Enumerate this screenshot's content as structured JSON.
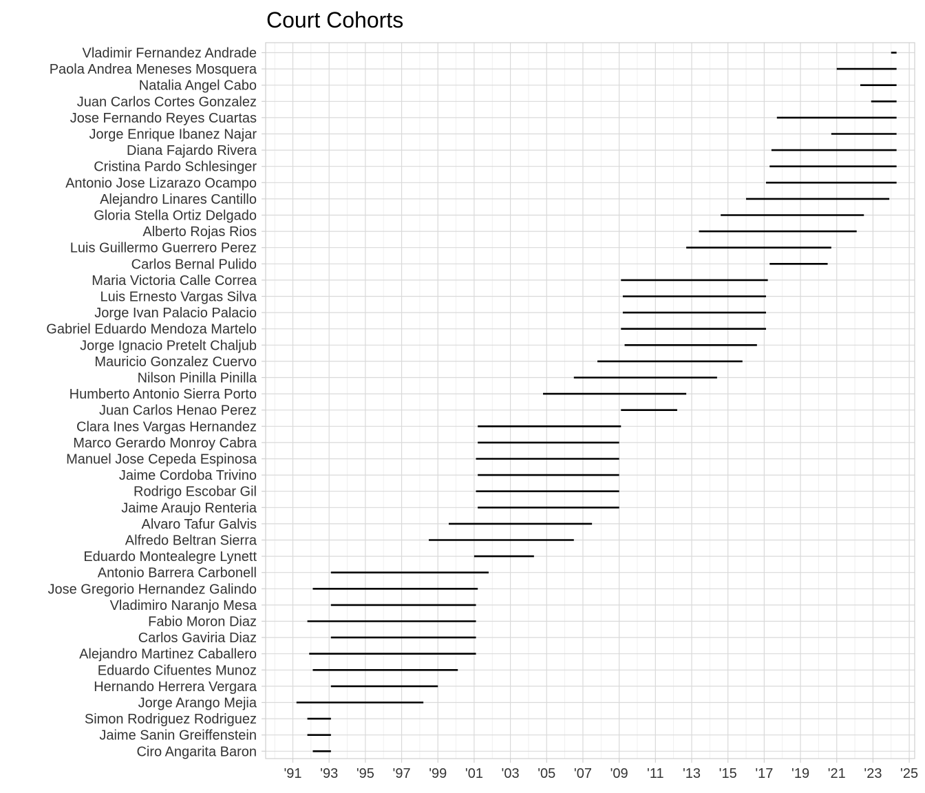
{
  "chart_data": {
    "type": "segment",
    "title": "Court Cohorts",
    "xlabel": "",
    "ylabel": "",
    "xlim": [
      1989.5,
      2025.3
    ],
    "x_ticks": [
      1991,
      1993,
      1995,
      1997,
      1999,
      2001,
      2003,
      2005,
      2007,
      2009,
      2011,
      2013,
      2015,
      2017,
      2019,
      2021,
      2023,
      2025
    ],
    "x_tick_labels": [
      "'91",
      "'93",
      "'95",
      "'97",
      "'99",
      "'01",
      "'03",
      "'05",
      "'07",
      "'09",
      "'11",
      "'13",
      "'15",
      "'17",
      "'19",
      "'21",
      "'23",
      "'25"
    ],
    "grid": true,
    "justices": [
      {
        "name": "Vladimir Fernandez Andrade",
        "start": 2024.0,
        "end": 2024.3
      },
      {
        "name": "Paola Andrea Meneses Mosquera",
        "start": 2021.0,
        "end": 2024.3
      },
      {
        "name": "Natalia Angel Cabo",
        "start": 2022.3,
        "end": 2024.3
      },
      {
        "name": "Juan Carlos Cortes Gonzalez",
        "start": 2022.9,
        "end": 2024.3
      },
      {
        "name": "Jose Fernando Reyes Cuartas",
        "start": 2017.7,
        "end": 2024.3
      },
      {
        "name": "Jorge Enrique Ibanez Najar",
        "start": 2020.7,
        "end": 2024.3
      },
      {
        "name": "Diana Fajardo Rivera",
        "start": 2017.4,
        "end": 2024.3
      },
      {
        "name": "Cristina Pardo Schlesinger",
        "start": 2017.3,
        "end": 2024.3
      },
      {
        "name": "Antonio Jose Lizarazo Ocampo",
        "start": 2017.1,
        "end": 2024.3
      },
      {
        "name": "Alejandro Linares Cantillo",
        "start": 2016.0,
        "end": 2023.9
      },
      {
        "name": "Gloria Stella Ortiz Delgado",
        "start": 2014.6,
        "end": 2022.5
      },
      {
        "name": "Alberto Rojas Rios",
        "start": 2013.4,
        "end": 2022.1
      },
      {
        "name": "Luis Guillermo Guerrero Perez",
        "start": 2012.7,
        "end": 2020.7
      },
      {
        "name": "Carlos Bernal Pulido",
        "start": 2017.3,
        "end": 2020.5
      },
      {
        "name": "Maria Victoria Calle Correa",
        "start": 2009.1,
        "end": 2017.2
      },
      {
        "name": "Luis Ernesto Vargas Silva",
        "start": 2009.2,
        "end": 2017.1
      },
      {
        "name": "Jorge Ivan Palacio Palacio",
        "start": 2009.2,
        "end": 2017.1
      },
      {
        "name": "Gabriel Eduardo Mendoza Martelo",
        "start": 2009.1,
        "end": 2017.1
      },
      {
        "name": "Jorge Ignacio Pretelt Chaljub",
        "start": 2009.3,
        "end": 2016.6
      },
      {
        "name": "Mauricio Gonzalez Cuervo",
        "start": 2007.8,
        "end": 2015.8
      },
      {
        "name": "Nilson Pinilla Pinilla",
        "start": 2006.5,
        "end": 2014.4
      },
      {
        "name": "Humberto Antonio Sierra Porto",
        "start": 2004.8,
        "end": 2012.7
      },
      {
        "name": "Juan Carlos Henao Perez",
        "start": 2009.1,
        "end": 2012.2
      },
      {
        "name": "Clara Ines Vargas Hernandez",
        "start": 2001.2,
        "end": 2009.1
      },
      {
        "name": "Marco Gerardo Monroy Cabra",
        "start": 2001.2,
        "end": 2009.0
      },
      {
        "name": "Manuel Jose Cepeda Espinosa",
        "start": 2001.1,
        "end": 2009.0
      },
      {
        "name": "Jaime Cordoba Trivino",
        "start": 2001.2,
        "end": 2009.0
      },
      {
        "name": "Rodrigo Escobar Gil",
        "start": 2001.1,
        "end": 2009.0
      },
      {
        "name": "Jaime Araujo Renteria",
        "start": 2001.2,
        "end": 2009.0
      },
      {
        "name": "Alvaro Tafur Galvis",
        "start": 1999.6,
        "end": 2007.5
      },
      {
        "name": "Alfredo Beltran Sierra",
        "start": 1998.5,
        "end": 2006.5
      },
      {
        "name": "Eduardo Montealegre Lynett",
        "start": 2001.0,
        "end": 2004.3
      },
      {
        "name": "Antonio Barrera Carbonell",
        "start": 1993.1,
        "end": 2001.8
      },
      {
        "name": "Jose Gregorio Hernandez Galindo",
        "start": 1992.1,
        "end": 2001.2
      },
      {
        "name": "Vladimiro Naranjo Mesa",
        "start": 1993.1,
        "end": 2001.1
      },
      {
        "name": "Fabio Moron Diaz",
        "start": 1991.8,
        "end": 2001.1
      },
      {
        "name": "Carlos Gaviria Diaz",
        "start": 1993.1,
        "end": 2001.1
      },
      {
        "name": "Alejandro Martinez Caballero",
        "start": 1991.9,
        "end": 2001.1
      },
      {
        "name": "Eduardo Cifuentes Munoz",
        "start": 1992.1,
        "end": 2000.1
      },
      {
        "name": "Hernando Herrera Vergara",
        "start": 1993.1,
        "end": 1999.0
      },
      {
        "name": "Jorge Arango Mejia",
        "start": 1991.2,
        "end": 1998.2
      },
      {
        "name": "Simon Rodriguez Rodriguez",
        "start": 1991.8,
        "end": 1993.1
      },
      {
        "name": "Jaime Sanin Greiffenstein",
        "start": 1991.8,
        "end": 1993.1
      },
      {
        "name": "Ciro Angarita Baron",
        "start": 1992.1,
        "end": 1993.1
      }
    ]
  }
}
